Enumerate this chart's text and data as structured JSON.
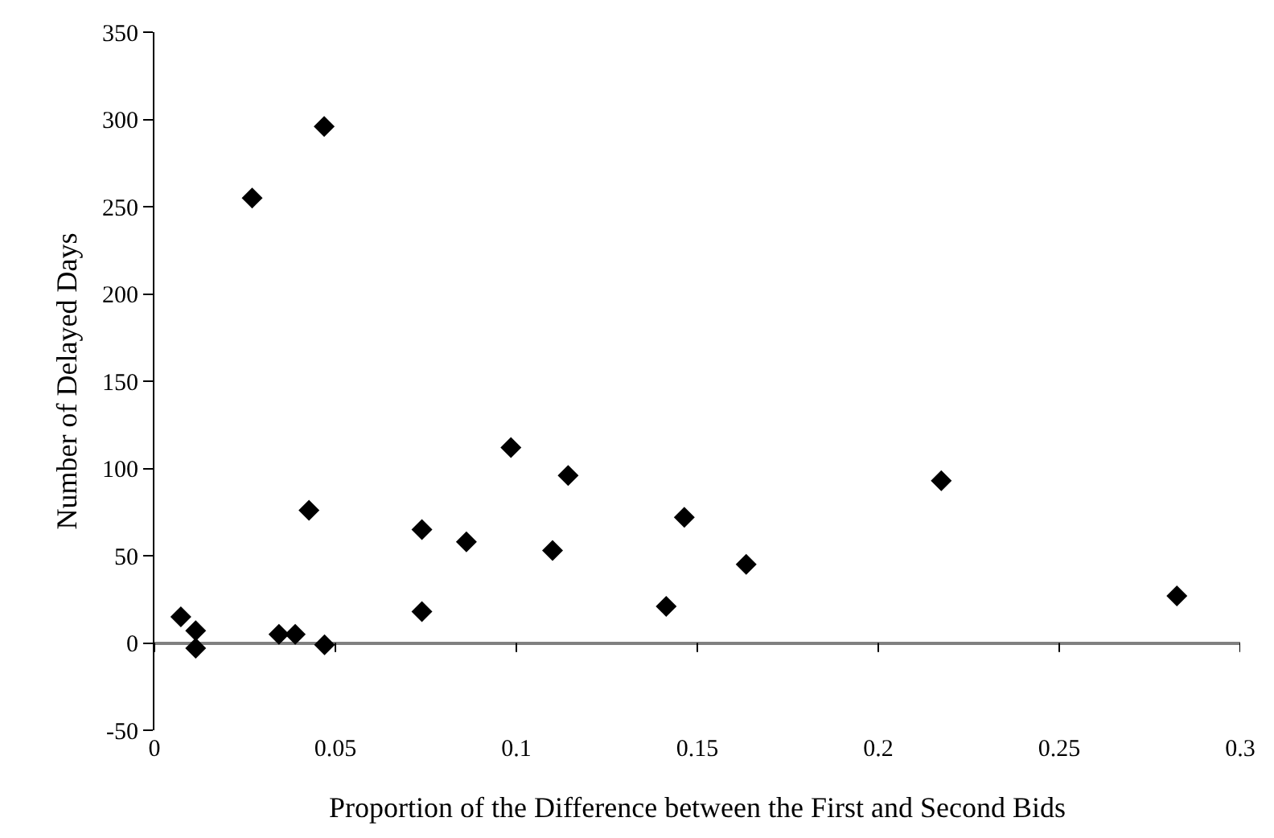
{
  "chart_data": {
    "type": "scatter",
    "xlabel": "Proportion of the Difference between the First and Second Bids",
    "ylabel": "Number of Delayed Days",
    "x": [
      0.0073,
      0.0114,
      0.0114,
      0.027,
      0.0469,
      0.0344,
      0.0389,
      0.047,
      0.0427,
      0.0739,
      0.0739,
      0.0862,
      0.0985,
      0.11,
      0.1143,
      0.1414,
      0.1464,
      0.1635,
      0.2174,
      0.2825
    ],
    "values": [
      15,
      7,
      -3,
      255,
      296,
      5,
      5,
      -1,
      76,
      65,
      18,
      58,
      112,
      53,
      96,
      21,
      72,
      45,
      93,
      27
    ],
    "color": "#000000",
    "marker": "diamond",
    "xlim": [
      0,
      0.3
    ],
    "xticks": [
      0,
      0.05,
      0.1,
      0.15,
      0.2,
      0.25,
      0.3
    ],
    "ylim": [
      -50,
      350
    ],
    "yticks": [
      -50,
      0,
      50,
      100,
      150,
      200,
      250,
      300,
      350
    ],
    "legend": false
  }
}
